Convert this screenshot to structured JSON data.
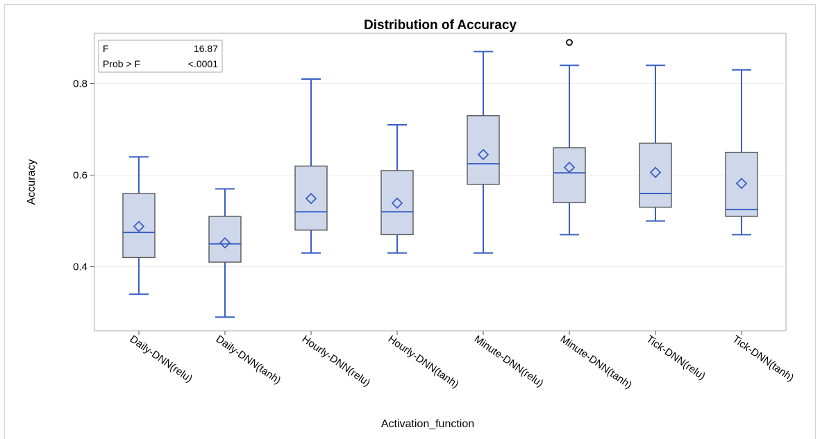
{
  "chart_data": {
    "type": "box",
    "title": "Distribution of Accuracy",
    "xlabel": "Activation_function",
    "ylabel": "Accuracy",
    "ylim": [
      0.26,
      0.91
    ],
    "yticks": [
      "0.4",
      "0.6",
      "0.8"
    ],
    "ytick_values": [
      0.4,
      0.6,
      0.8
    ],
    "grid": true,
    "colors": {
      "box_fill": "#cfd8ea",
      "box_edge": "#555555",
      "whisker": "#3a5fc4",
      "outlier": "#000000"
    },
    "categories": [
      "Daily-DNN(relu)",
      "Daily-DNN(tanh)",
      "Hourly-DNN(relu)",
      "Hourly-DNN(tanh)",
      "Minute-DNN(relu)",
      "Minute-DNN(tanh)",
      "Tick-DNN(relu)",
      "Tick-DNN(tanh)"
    ],
    "boxes": [
      {
        "min": 0.34,
        "q1": 0.42,
        "median": 0.475,
        "q3": 0.56,
        "max": 0.64,
        "mean": 0.488,
        "outliers": []
      },
      {
        "min": 0.29,
        "q1": 0.41,
        "median": 0.45,
        "q3": 0.51,
        "max": 0.57,
        "mean": 0.452,
        "outliers": []
      },
      {
        "min": 0.43,
        "q1": 0.48,
        "median": 0.52,
        "q3": 0.62,
        "max": 0.81,
        "mean": 0.549,
        "outliers": []
      },
      {
        "min": 0.43,
        "q1": 0.47,
        "median": 0.52,
        "q3": 0.61,
        "max": 0.71,
        "mean": 0.539,
        "outliers": []
      },
      {
        "min": 0.43,
        "q1": 0.58,
        "median": 0.625,
        "q3": 0.73,
        "max": 0.87,
        "mean": 0.645,
        "outliers": []
      },
      {
        "min": 0.47,
        "q1": 0.54,
        "median": 0.605,
        "q3": 0.66,
        "max": 0.84,
        "mean": 0.617,
        "outliers": [
          0.89
        ]
      },
      {
        "min": 0.5,
        "q1": 0.53,
        "median": 0.56,
        "q3": 0.67,
        "max": 0.84,
        "mean": 0.606,
        "outliers": []
      },
      {
        "min": 0.47,
        "q1": 0.51,
        "median": 0.525,
        "q3": 0.65,
        "max": 0.83,
        "mean": 0.582,
        "outliers": []
      }
    ],
    "inset": {
      "f_label": "F",
      "f_value": "16.87",
      "p_label": "Prob > F",
      "p_value": "<.0001"
    }
  }
}
